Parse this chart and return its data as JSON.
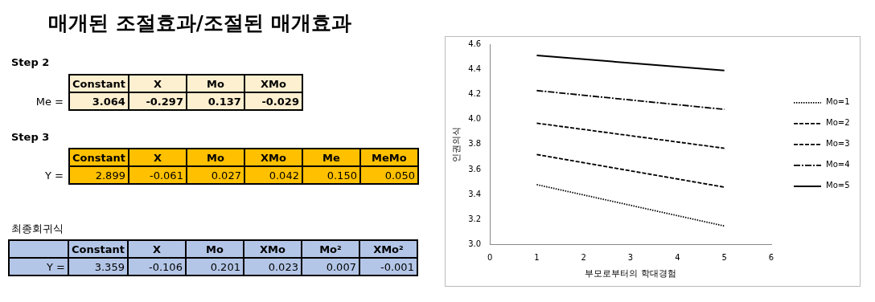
{
  "chart_data": [
    {
      "type": "other",
      "title": "매개된 조절효과/조절된 매개효과",
      "annotations": [
        "Step 2",
        "Constant",
        "X",
        "Mo",
        "XMo",
        "Me =",
        "3.064",
        "-0.297",
        "0.137",
        "-0.029",
        "Step 3",
        "Constant",
        "X",
        "Mo",
        "XMo",
        "Me",
        "MeMo",
        "Y =",
        "2.899",
        "-0.061",
        "0.027",
        "0.042",
        "0.150",
        "0.050",
        "최종회귀식",
        "Constant",
        "X",
        "Mo",
        "XMo",
        "Mo²",
        "XMo²",
        "Y =",
        "3.359",
        "-0.106",
        "0.201",
        "0.023",
        "0.007",
        "-0.001"
      ]
    },
    {
      "type": "line",
      "xlabel": "부모로부터의 학대경험",
      "ylabel": "인권의식",
      "x": [
        1,
        5
      ],
      "series": [
        {
          "name": "Mo=1",
          "color": "#000000",
          "line_style": "dotted",
          "values": [
            3.48,
            3.15
          ]
        },
        {
          "name": "Mo=2",
          "color": "#000000",
          "line_style": "dashed",
          "values": [
            3.72,
            3.46
          ]
        },
        {
          "name": "Mo=3",
          "color": "#000000",
          "line_style": "dashed",
          "values": [
            3.97,
            3.77
          ]
        },
        {
          "name": "Mo=4",
          "color": "#000000",
          "line_style": "dashdot",
          "values": [
            4.23,
            4.08
          ]
        },
        {
          "name": "Mo=5",
          "color": "#000000",
          "line_style": "solid",
          "values": [
            4.51,
            4.39
          ]
        }
      ],
      "xlim": [
        0,
        6
      ],
      "xticks": [
        0,
        1,
        2,
        3,
        4,
        5,
        6
      ],
      "ylim": [
        3.0,
        4.6
      ],
      "yticks": [
        {
          "value": 3.0,
          "label": "3.0"
        },
        3.2,
        3.4,
        3.6,
        3.8,
        {
          "value": 4.0,
          "label": "4.0"
        },
        4.2,
        4.4,
        4.6
      ],
      "grid": false,
      "legend": "right",
      "marker": "none"
    }
  ]
}
